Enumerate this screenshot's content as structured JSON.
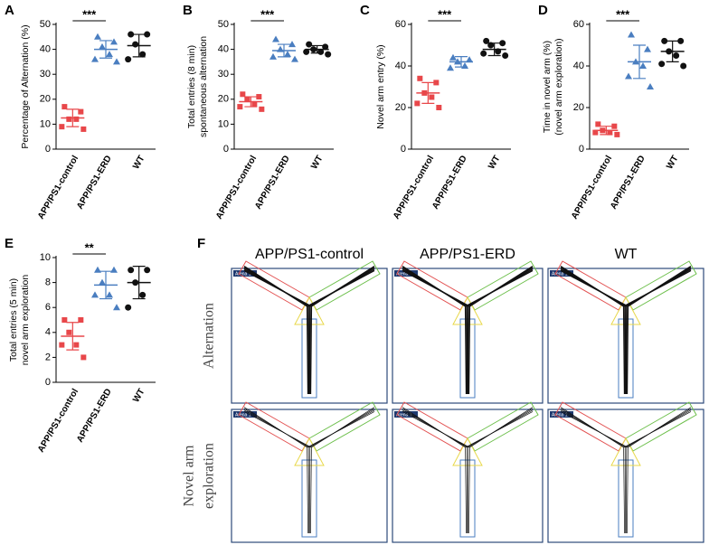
{
  "chart_data": [
    {
      "type": "dotplot",
      "panel_label": "A",
      "ylabel": [
        "Percentage of Alternation (%)"
      ],
      "categories": [
        "APP/PS1-control",
        "APP/PS1-ERD",
        "WT"
      ],
      "colors": [
        "#e8474a",
        "#4a7ec0",
        "#111111"
      ],
      "markers": [
        "square",
        "triangle",
        "circle"
      ],
      "values": [
        [
          17,
          15,
          12,
          12,
          9,
          8
        ],
        [
          45,
          43,
          41,
          38,
          36,
          35
        ],
        [
          46,
          46,
          42,
          38,
          36
        ]
      ],
      "mean": [
        12.5,
        40,
        41.5
      ],
      "sd": [
        3.5,
        3.5,
        4.5
      ],
      "ylim": [
        0,
        50
      ],
      "yticks": [
        0,
        10,
        20,
        30,
        40,
        50
      ],
      "significance": {
        "text": "***",
        "between": [
          0,
          1
        ]
      }
    },
    {
      "type": "dotplot",
      "panel_label": "B",
      "ylabel": [
        "Total entries (8 min)",
        "spontaneous alternation"
      ],
      "categories": [
        "APP/PS1-control",
        "APP/PS1-ERD",
        "WT"
      ],
      "colors": [
        "#e8474a",
        "#4a7ec0",
        "#111111"
      ],
      "markers": [
        "square",
        "triangle",
        "circle"
      ],
      "values": [
        [
          22,
          21,
          20,
          18,
          17,
          16
        ],
        [
          44,
          42,
          40,
          38,
          37,
          36
        ],
        [
          42,
          41,
          40,
          39,
          39,
          38
        ]
      ],
      "mean": [
        19,
        39.5,
        40
      ],
      "sd": [
        2,
        2.5,
        1.5
      ],
      "ylim": [
        0,
        50
      ],
      "yticks": [
        0,
        10,
        20,
        30,
        40,
        50
      ],
      "significance": {
        "text": "***",
        "between": [
          0,
          1
        ]
      }
    },
    {
      "type": "dotplot",
      "panel_label": "C",
      "ylabel": [
        "Novel arm entry (%)"
      ],
      "categories": [
        "APP/PS1-control",
        "APP/PS1-ERD",
        "WT"
      ],
      "colors": [
        "#e8474a",
        "#4a7ec0",
        "#111111"
      ],
      "markers": [
        "square",
        "triangle",
        "circle"
      ],
      "values": [
        [
          34,
          32,
          27,
          25,
          22,
          20
        ],
        [
          44,
          43,
          42,
          40,
          39
        ],
        [
          52,
          51,
          50,
          47,
          46,
          45
        ]
      ],
      "mean": [
        27,
        42,
        48
      ],
      "sd": [
        5,
        2.5,
        3
      ],
      "ylim": [
        0,
        60
      ],
      "yticks": [
        0,
        20,
        40,
        60
      ],
      "significance": {
        "text": "***",
        "between": [
          0,
          1
        ]
      }
    },
    {
      "type": "dotplot",
      "panel_label": "D",
      "ylabel": [
        "Time in novel arm (%)",
        "(novel arm exploration)"
      ],
      "categories": [
        "APP/PS1-control",
        "APP/PS1-ERD",
        "WT"
      ],
      "colors": [
        "#e8474a",
        "#4a7ec0",
        "#111111"
      ],
      "markers": [
        "square",
        "triangle",
        "circle"
      ],
      "values": [
        [
          12,
          11,
          9,
          8,
          8,
          7
        ],
        [
          55,
          48,
          42,
          40,
          35,
          30
        ],
        [
          52,
          52,
          47,
          45,
          41,
          40
        ]
      ],
      "mean": [
        9,
        42,
        47
      ],
      "sd": [
        2,
        8,
        5
      ],
      "ylim": [
        0,
        60
      ],
      "yticks": [
        0,
        20,
        40,
        60
      ],
      "significance": {
        "text": "***",
        "between": [
          0,
          1
        ]
      }
    },
    {
      "type": "dotplot",
      "panel_label": "E",
      "ylabel": [
        "Total entries (5 min)",
        "novel arm exploration"
      ],
      "categories": [
        "APP/PS1-control",
        "APP/PS1-ERD",
        "WT"
      ],
      "colors": [
        "#e8474a",
        "#4a7ec0",
        "#111111"
      ],
      "markers": [
        "square",
        "triangle",
        "circle"
      ],
      "values": [
        [
          5,
          5,
          4,
          3,
          3,
          2
        ],
        [
          9,
          9,
          8,
          7,
          7,
          6
        ],
        [
          9,
          9,
          8,
          7,
          6
        ]
      ],
      "mean": [
        3.7,
        7.8,
        8
      ],
      "sd": [
        1.1,
        1.1,
        1.3
      ],
      "ylim": [
        0,
        10
      ],
      "yticks": [
        0,
        2,
        4,
        6,
        8,
        10
      ],
      "significance": {
        "text": "**",
        "between": [
          0,
          1
        ]
      }
    }
  ],
  "panel_f": {
    "panel_label": "F",
    "columns": [
      "APP/PS1-control",
      "APP/PS1-ERD",
      "WT"
    ],
    "rows": [
      [
        "Alternation"
      ],
      [
        "Novel arm",
        "exploration"
      ]
    ],
    "arena_label": "Arena 1"
  }
}
